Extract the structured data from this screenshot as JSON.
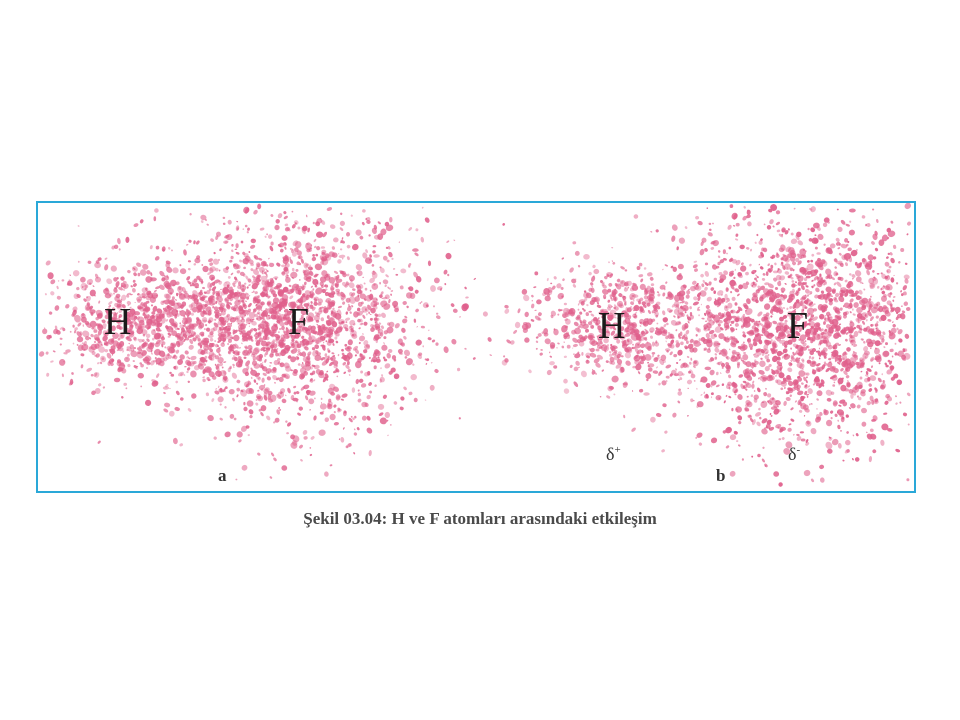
{
  "figure": {
    "panel_a": {
      "label": "a",
      "atom_left": "H",
      "atom_right": "F"
    },
    "panel_b": {
      "label": "b",
      "atom_left": "H",
      "atom_right": "F",
      "charge_left": "δ",
      "charge_left_sign": "+",
      "charge_right": "δ",
      "charge_right_sign": "-"
    },
    "cloud_color": "#e0608c",
    "frame_color": "#2aa8d8"
  },
  "caption": "Şekil 03.04: H ve F atomları arasındaki etkileşim"
}
